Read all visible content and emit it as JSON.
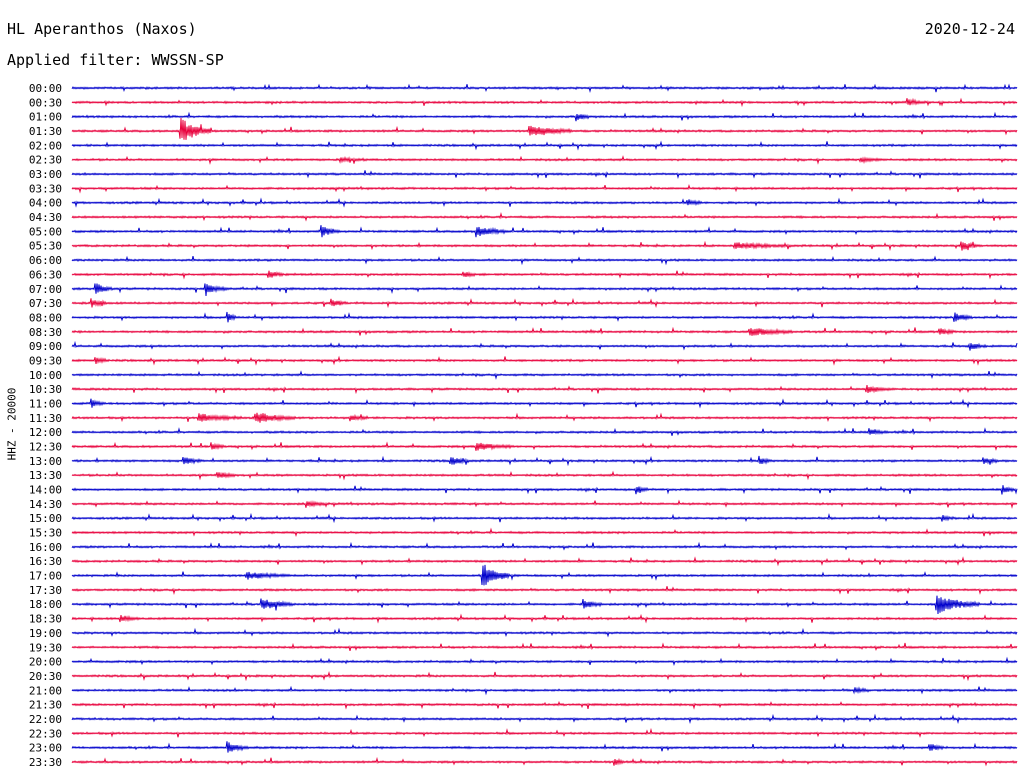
{
  "header": {
    "station": "HL Aperanthos (Naxos)",
    "date": "2020-12-24",
    "filter": "Applied filter: WWSSN-SP",
    "channel": "HHZ - 20000"
  },
  "colors": {
    "even_trace": "#0000cc",
    "odd_trace": "#e8003c"
  },
  "chart_data": {
    "type": "line",
    "title": "HL Aperanthos (Naxos)",
    "subtitle": "Applied filter: WWSSN-SP",
    "ylabel": "HHZ - 20000",
    "grid": false,
    "legend": "none",
    "rows": [
      "00:00",
      "00:30",
      "01:00",
      "01:30",
      "02:00",
      "02:30",
      "03:00",
      "03:30",
      "04:00",
      "04:30",
      "05:00",
      "05:30",
      "06:00",
      "06:30",
      "07:00",
      "07:30",
      "08:00",
      "08:30",
      "09:00",
      "09:30",
      "10:00",
      "10:30",
      "11:00",
      "11:30",
      "12:00",
      "12:30",
      "13:00",
      "13:30",
      "14:00",
      "14:30",
      "15:00",
      "15:30",
      "16:00",
      "16:30",
      "17:00",
      "17:30",
      "18:00",
      "18:30",
      "19:00",
      "19:30",
      "20:00",
      "20:30",
      "21:00",
      "21:30",
      "22:00",
      "22:30",
      "23:00",
      "23:30"
    ],
    "events": [
      {
        "row": "00:30",
        "minute": 26.5,
        "amp": 0.25,
        "dur": 0.6
      },
      {
        "row": "01:00",
        "minute": 16.0,
        "amp": 0.35,
        "dur": 0.4
      },
      {
        "row": "01:30",
        "minute": 3.4,
        "amp": 1.0,
        "dur": 1.0
      },
      {
        "row": "01:30",
        "minute": 14.5,
        "amp": 0.45,
        "dur": 1.4
      },
      {
        "row": "02:30",
        "minute": 8.5,
        "amp": 0.15,
        "dur": 0.8
      },
      {
        "row": "02:30",
        "minute": 25.0,
        "amp": 0.15,
        "dur": 0.8
      },
      {
        "row": "04:00",
        "minute": 19.5,
        "amp": 0.25,
        "dur": 0.5
      },
      {
        "row": "05:00",
        "minute": 7.9,
        "amp": 0.45,
        "dur": 0.6
      },
      {
        "row": "05:00",
        "minute": 12.8,
        "amp": 0.4,
        "dur": 1.0
      },
      {
        "row": "05:30",
        "minute": 21.0,
        "amp": 0.2,
        "dur": 1.8
      },
      {
        "row": "05:30",
        "minute": 28.2,
        "amp": 0.35,
        "dur": 0.6
      },
      {
        "row": "06:30",
        "minute": 6.2,
        "amp": 0.3,
        "dur": 0.5
      },
      {
        "row": "06:30",
        "minute": 12.4,
        "amp": 0.25,
        "dur": 0.4
      },
      {
        "row": "07:00",
        "minute": 0.7,
        "amp": 0.45,
        "dur": 0.6
      },
      {
        "row": "07:00",
        "minute": 4.2,
        "amp": 0.4,
        "dur": 0.7
      },
      {
        "row": "07:30",
        "minute": 0.6,
        "amp": 0.35,
        "dur": 0.5
      },
      {
        "row": "07:30",
        "minute": 8.2,
        "amp": 0.3,
        "dur": 0.5
      },
      {
        "row": "08:00",
        "minute": 4.9,
        "amp": 0.45,
        "dur": 0.3
      },
      {
        "row": "08:00",
        "minute": 28.0,
        "amp": 0.4,
        "dur": 0.6
      },
      {
        "row": "08:30",
        "minute": 21.5,
        "amp": 0.3,
        "dur": 1.4
      },
      {
        "row": "08:30",
        "minute": 27.5,
        "amp": 0.3,
        "dur": 0.5
      },
      {
        "row": "09:00",
        "minute": 28.5,
        "amp": 0.3,
        "dur": 0.5
      },
      {
        "row": "09:30",
        "minute": 0.7,
        "amp": 0.3,
        "dur": 0.4
      },
      {
        "row": "10:30",
        "minute": 25.2,
        "amp": 0.3,
        "dur": 0.8
      },
      {
        "row": "11:00",
        "minute": 0.6,
        "amp": 0.3,
        "dur": 0.4
      },
      {
        "row": "11:30",
        "minute": 4.0,
        "amp": 0.3,
        "dur": 1.4
      },
      {
        "row": "11:30",
        "minute": 5.8,
        "amp": 0.4,
        "dur": 1.3
      },
      {
        "row": "11:30",
        "minute": 8.8,
        "amp": 0.25,
        "dur": 0.6
      },
      {
        "row": "12:00",
        "minute": 25.3,
        "amp": 0.25,
        "dur": 0.6
      },
      {
        "row": "12:30",
        "minute": 4.4,
        "amp": 0.3,
        "dur": 0.4
      },
      {
        "row": "12:30",
        "minute": 12.8,
        "amp": 0.3,
        "dur": 1.2
      },
      {
        "row": "13:00",
        "minute": 3.5,
        "amp": 0.3,
        "dur": 0.6
      },
      {
        "row": "13:00",
        "minute": 12.0,
        "amp": 0.35,
        "dur": 0.6
      },
      {
        "row": "13:00",
        "minute": 21.8,
        "amp": 0.35,
        "dur": 0.4
      },
      {
        "row": "13:00",
        "minute": 28.9,
        "amp": 0.3,
        "dur": 0.5
      },
      {
        "row": "13:30",
        "minute": 4.6,
        "amp": 0.25,
        "dur": 0.6
      },
      {
        "row": "14:00",
        "minute": 17.9,
        "amp": 0.35,
        "dur": 0.4
      },
      {
        "row": "14:00",
        "minute": 29.5,
        "amp": 0.35,
        "dur": 0.4
      },
      {
        "row": "14:30",
        "minute": 7.4,
        "amp": 0.25,
        "dur": 0.6
      },
      {
        "row": "15:00",
        "minute": 27.6,
        "amp": 0.25,
        "dur": 0.4
      },
      {
        "row": "17:00",
        "minute": 13.0,
        "amp": 1.0,
        "dur": 0.9
      },
      {
        "row": "17:00",
        "minute": 5.5,
        "amp": 0.25,
        "dur": 1.4
      },
      {
        "row": "18:00",
        "minute": 6.0,
        "amp": 0.4,
        "dur": 1.0
      },
      {
        "row": "18:00",
        "minute": 16.2,
        "amp": 0.4,
        "dur": 0.6
      },
      {
        "row": "18:00",
        "minute": 27.4,
        "amp": 0.75,
        "dur": 1.4
      },
      {
        "row": "18:30",
        "minute": 1.5,
        "amp": 0.25,
        "dur": 0.6
      },
      {
        "row": "21:00",
        "minute": 24.8,
        "amp": 0.25,
        "dur": 0.5
      },
      {
        "row": "23:00",
        "minute": 4.9,
        "amp": 0.45,
        "dur": 0.7
      },
      {
        "row": "23:00",
        "minute": 27.2,
        "amp": 0.3,
        "dur": 0.5
      },
      {
        "row": "23:30",
        "minute": 17.2,
        "amp": 0.35,
        "dur": 0.3
      }
    ]
  }
}
